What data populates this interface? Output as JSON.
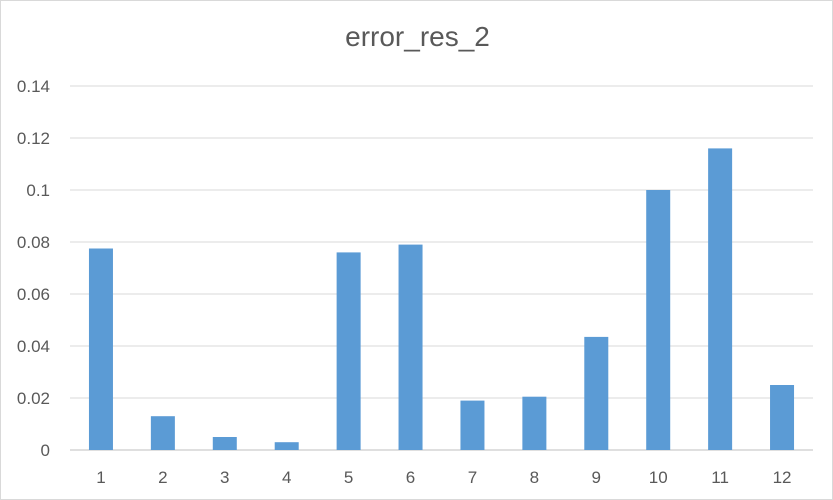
{
  "chart_data": {
    "type": "bar",
    "title": "error_res_2",
    "xlabel": "",
    "ylabel": "",
    "categories": [
      "1",
      "2",
      "3",
      "4",
      "5",
      "6",
      "7",
      "8",
      "9",
      "10",
      "11",
      "12"
    ],
    "series": [
      {
        "values": [
          0.0775,
          0.013,
          0.005,
          0.003,
          0.076,
          0.079,
          0.019,
          0.0205,
          0.0435,
          0.1,
          0.116,
          0.025
        ],
        "color": "#5b9bd5"
      }
    ],
    "ylim": [
      0,
      0.14
    ],
    "yticks": [
      "0",
      "0.02",
      "0.04",
      "0.06",
      "0.08",
      "0.1",
      "0.12",
      "0.14"
    ],
    "ytick_values": [
      0,
      0.02,
      0.04,
      0.06,
      0.08,
      0.1,
      0.12,
      0.14
    ],
    "grid": true,
    "legend": "none",
    "gridline_color": "#d9d9d9",
    "axis_color": "#bfbfbf"
  }
}
